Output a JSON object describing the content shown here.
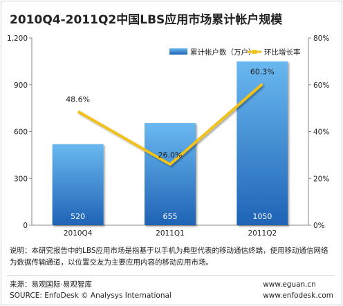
{
  "title": "2010Q4-2011Q2中国LBS应用市场累计帐户规模",
  "note": "说明：本研究报告中的LBS应用市场是指基于以手机为典型代表的移动通信终端，使用移动通信网络为数据传输通道，以位置交友为主要应用内容的移动应用市场。",
  "source": {
    "line1": "来源：易观国际·易观智库",
    "line2": "SOURCE: EnfoDesk © Analysys International"
  },
  "urls": {
    "line1": "www.eguan.cn",
    "line2": "www.enfodesk.com"
  },
  "colors": {
    "bar_top": "#6ab8f0",
    "bar_bottom": "#1f63b5",
    "line": "#f2c21a",
    "axis": "#888888"
  },
  "chart_data": {
    "type": "bar",
    "categories": [
      "2010Q4",
      "2011Q1",
      "2011Q2"
    ],
    "series": [
      {
        "name": "累计帐户数（万户）",
        "type": "bar",
        "axis": "left",
        "values": [
          520,
          655,
          1050
        ]
      },
      {
        "name": "环比增长率",
        "type": "line",
        "axis": "right",
        "values": [
          48.6,
          26.0,
          60.3
        ],
        "labels": [
          "48.6%",
          "26.0%",
          "60.3%"
        ]
      }
    ],
    "y_left": {
      "min": 0,
      "max": 1200,
      "ticks": [
        "0",
        "300",
        "600",
        "900",
        "1,200"
      ]
    },
    "y_right": {
      "min": 0,
      "max": 80,
      "ticks": [
        "0%",
        "20%",
        "40%",
        "60%",
        "80%"
      ]
    },
    "legend_position": "top-right",
    "grid": false
  }
}
